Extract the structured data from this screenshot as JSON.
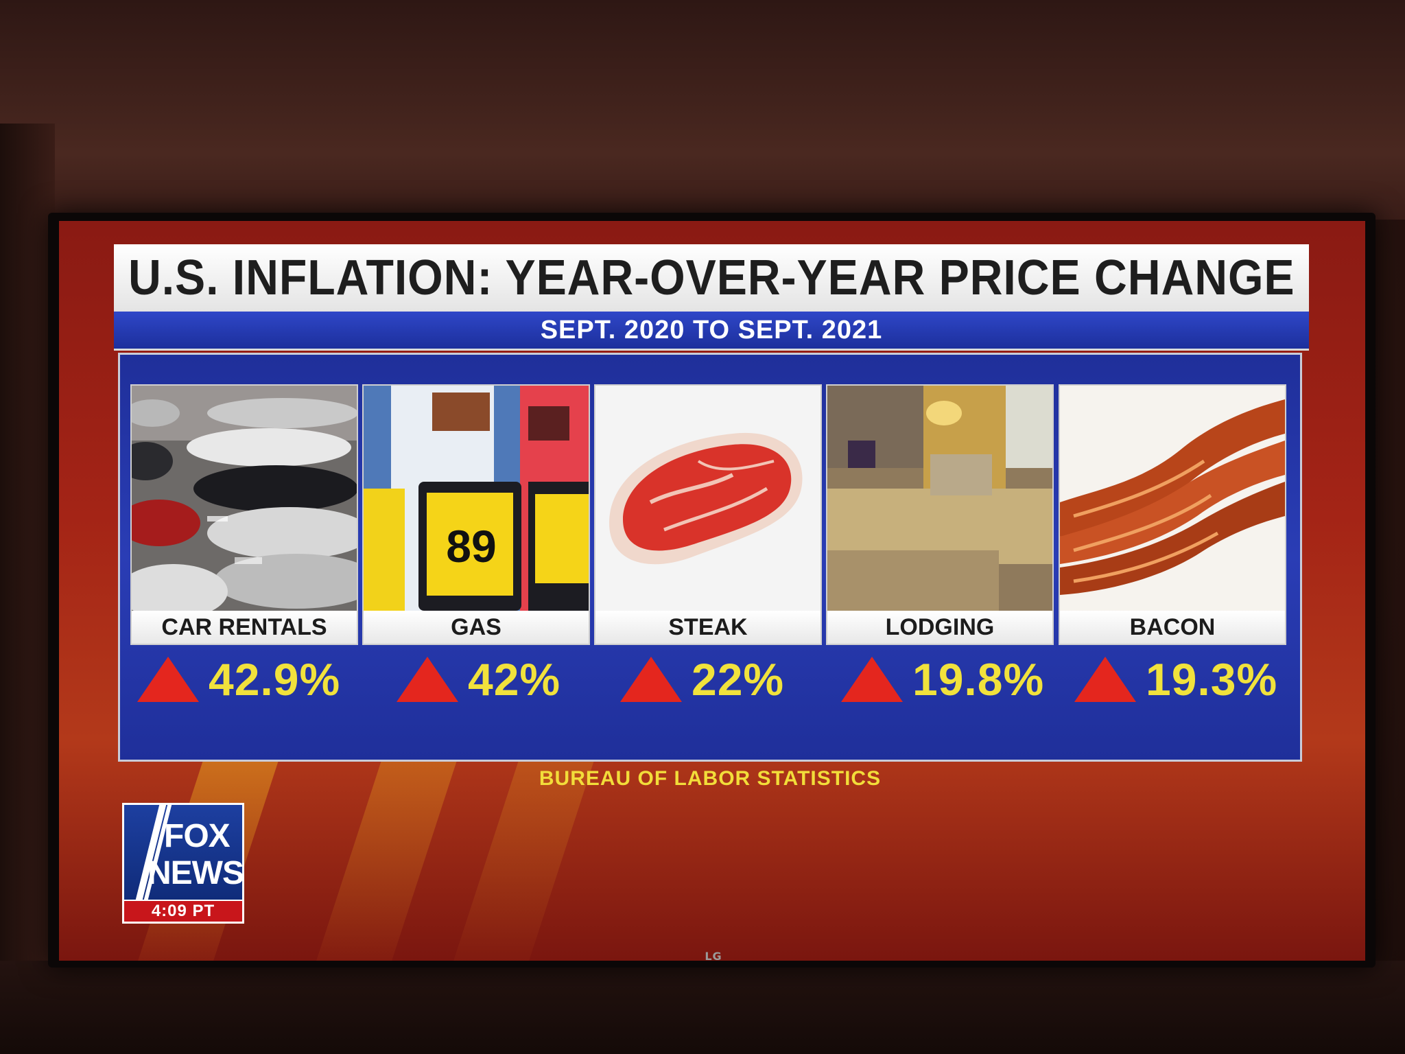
{
  "graphic": {
    "title": "U.S. INFLATION: YEAR-OVER-YEAR PRICE CHANGE",
    "subtitle": "SEPT. 2020 TO SEPT. 2021",
    "source": "BUREAU OF LABOR STATISTICS"
  },
  "items": [
    {
      "label": "CAR RENTALS",
      "change": "42.9%",
      "direction": "up"
    },
    {
      "label": "GAS",
      "change": "42%",
      "direction": "up"
    },
    {
      "label": "STEAK",
      "change": "22%",
      "direction": "up"
    },
    {
      "label": "LODGING",
      "change": "19.8%",
      "direction": "up"
    },
    {
      "label": "BACON",
      "change": "19.3%",
      "direction": "up"
    }
  ],
  "gas_sign": {
    "price": "89"
  },
  "logo": {
    "line1": "FOX",
    "line2": "NEWS",
    "time": "4:09 PT"
  },
  "tv": {
    "brand": "LG"
  },
  "colors": {
    "title_bg": "#ffffff",
    "subtitle_bg": "#2f47c8",
    "panel_bg": "#1f2f9a",
    "value_text": "#f1e23c",
    "up_triangle": "#e4261e",
    "source_text": "#f2dd3a",
    "logo_blue": "#1d3fa0",
    "logo_red": "#c8161b"
  }
}
